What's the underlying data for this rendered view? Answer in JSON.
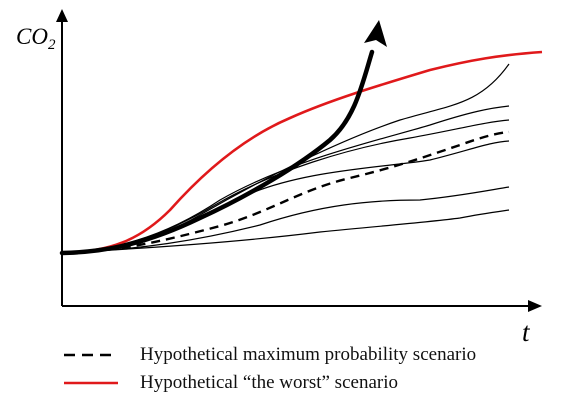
{
  "diagram": {
    "y_axis_label": "CO",
    "y_axis_subscript": "2",
    "x_axis_label": "t"
  },
  "legend": {
    "items": [
      {
        "label": "Hypothetical maximum probability scenario",
        "style": "dashed",
        "color": "#000000"
      },
      {
        "label": "Hypothetical “the worst” scenario",
        "style": "solid",
        "color": "#e0191b"
      }
    ]
  },
  "colors": {
    "axes": "#000000",
    "scenario_lines": "#000000",
    "worst_scenario": "#e0191b",
    "runaway_arrow": "#000000"
  }
}
